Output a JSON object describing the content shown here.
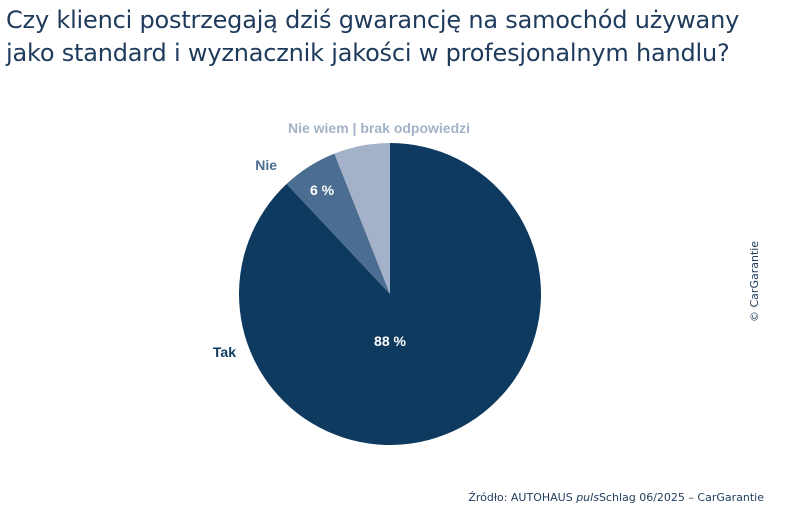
{
  "chart_data": {
    "type": "pie",
    "title": "Czy klienci postrzegają dziś gwarancję na samochód używany jako standard i wyznacznik jakości w profesjonalnym handlu?",
    "slices": [
      {
        "name": "Tak",
        "value": 88,
        "value_label": "88 %",
        "color": "#0e3a5f",
        "label_color": "#0e3a5f"
      },
      {
        "name": "Nie",
        "value": 6,
        "value_label": "6 %",
        "color": "#4a6d91",
        "label_color": "#4a6d91"
      },
      {
        "name": "Nie wiem | brak odpowiedzi",
        "value": 6,
        "value_label": "",
        "color": "#a3b2c8",
        "label_color": "#a3b2c8"
      }
    ]
  },
  "copyright": "© CarGarantie",
  "source": {
    "prefix": "Źródło: AUTOHAUS ",
    "italic": "puls",
    "suffix": "Schlag 06/2025 – CarGarantie"
  }
}
